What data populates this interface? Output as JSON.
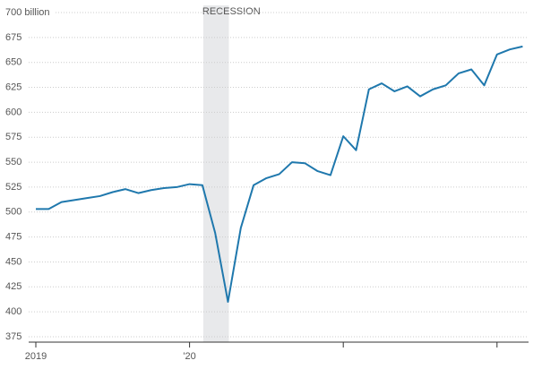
{
  "chart_data": {
    "type": "line",
    "categories": [
      "2019",
      null,
      null,
      null,
      null,
      null,
      null,
      null,
      null,
      null,
      null,
      null,
      "'20",
      null,
      null,
      null,
      null,
      null,
      null,
      null,
      null,
      null,
      null,
      null,
      null,
      null,
      null,
      null,
      null,
      null,
      null,
      null,
      null,
      null,
      null,
      null,
      null,
      null,
      null
    ],
    "series": [
      {
        "color": "#1f78ad",
        "values": [
          503,
          503,
          510,
          512,
          514,
          516,
          520,
          523,
          519,
          522,
          524,
          525,
          528,
          527,
          479,
          410,
          484,
          527,
          534,
          538,
          550,
          549,
          541,
          537,
          576,
          562,
          623,
          629,
          621,
          626,
          616,
          623,
          627,
          639,
          643,
          627,
          658,
          663,
          666
        ]
      }
    ],
    "ylim": [
      375,
      700
    ],
    "yticks": [
      375,
      400,
      425,
      450,
      475,
      500,
      525,
      550,
      575,
      600,
      625,
      650,
      675,
      {
        "value": 700,
        "label": "700 billion"
      }
    ],
    "grid": true,
    "recession": {
      "label": "RECESSION",
      "from": 13,
      "to": 15
    }
  }
}
